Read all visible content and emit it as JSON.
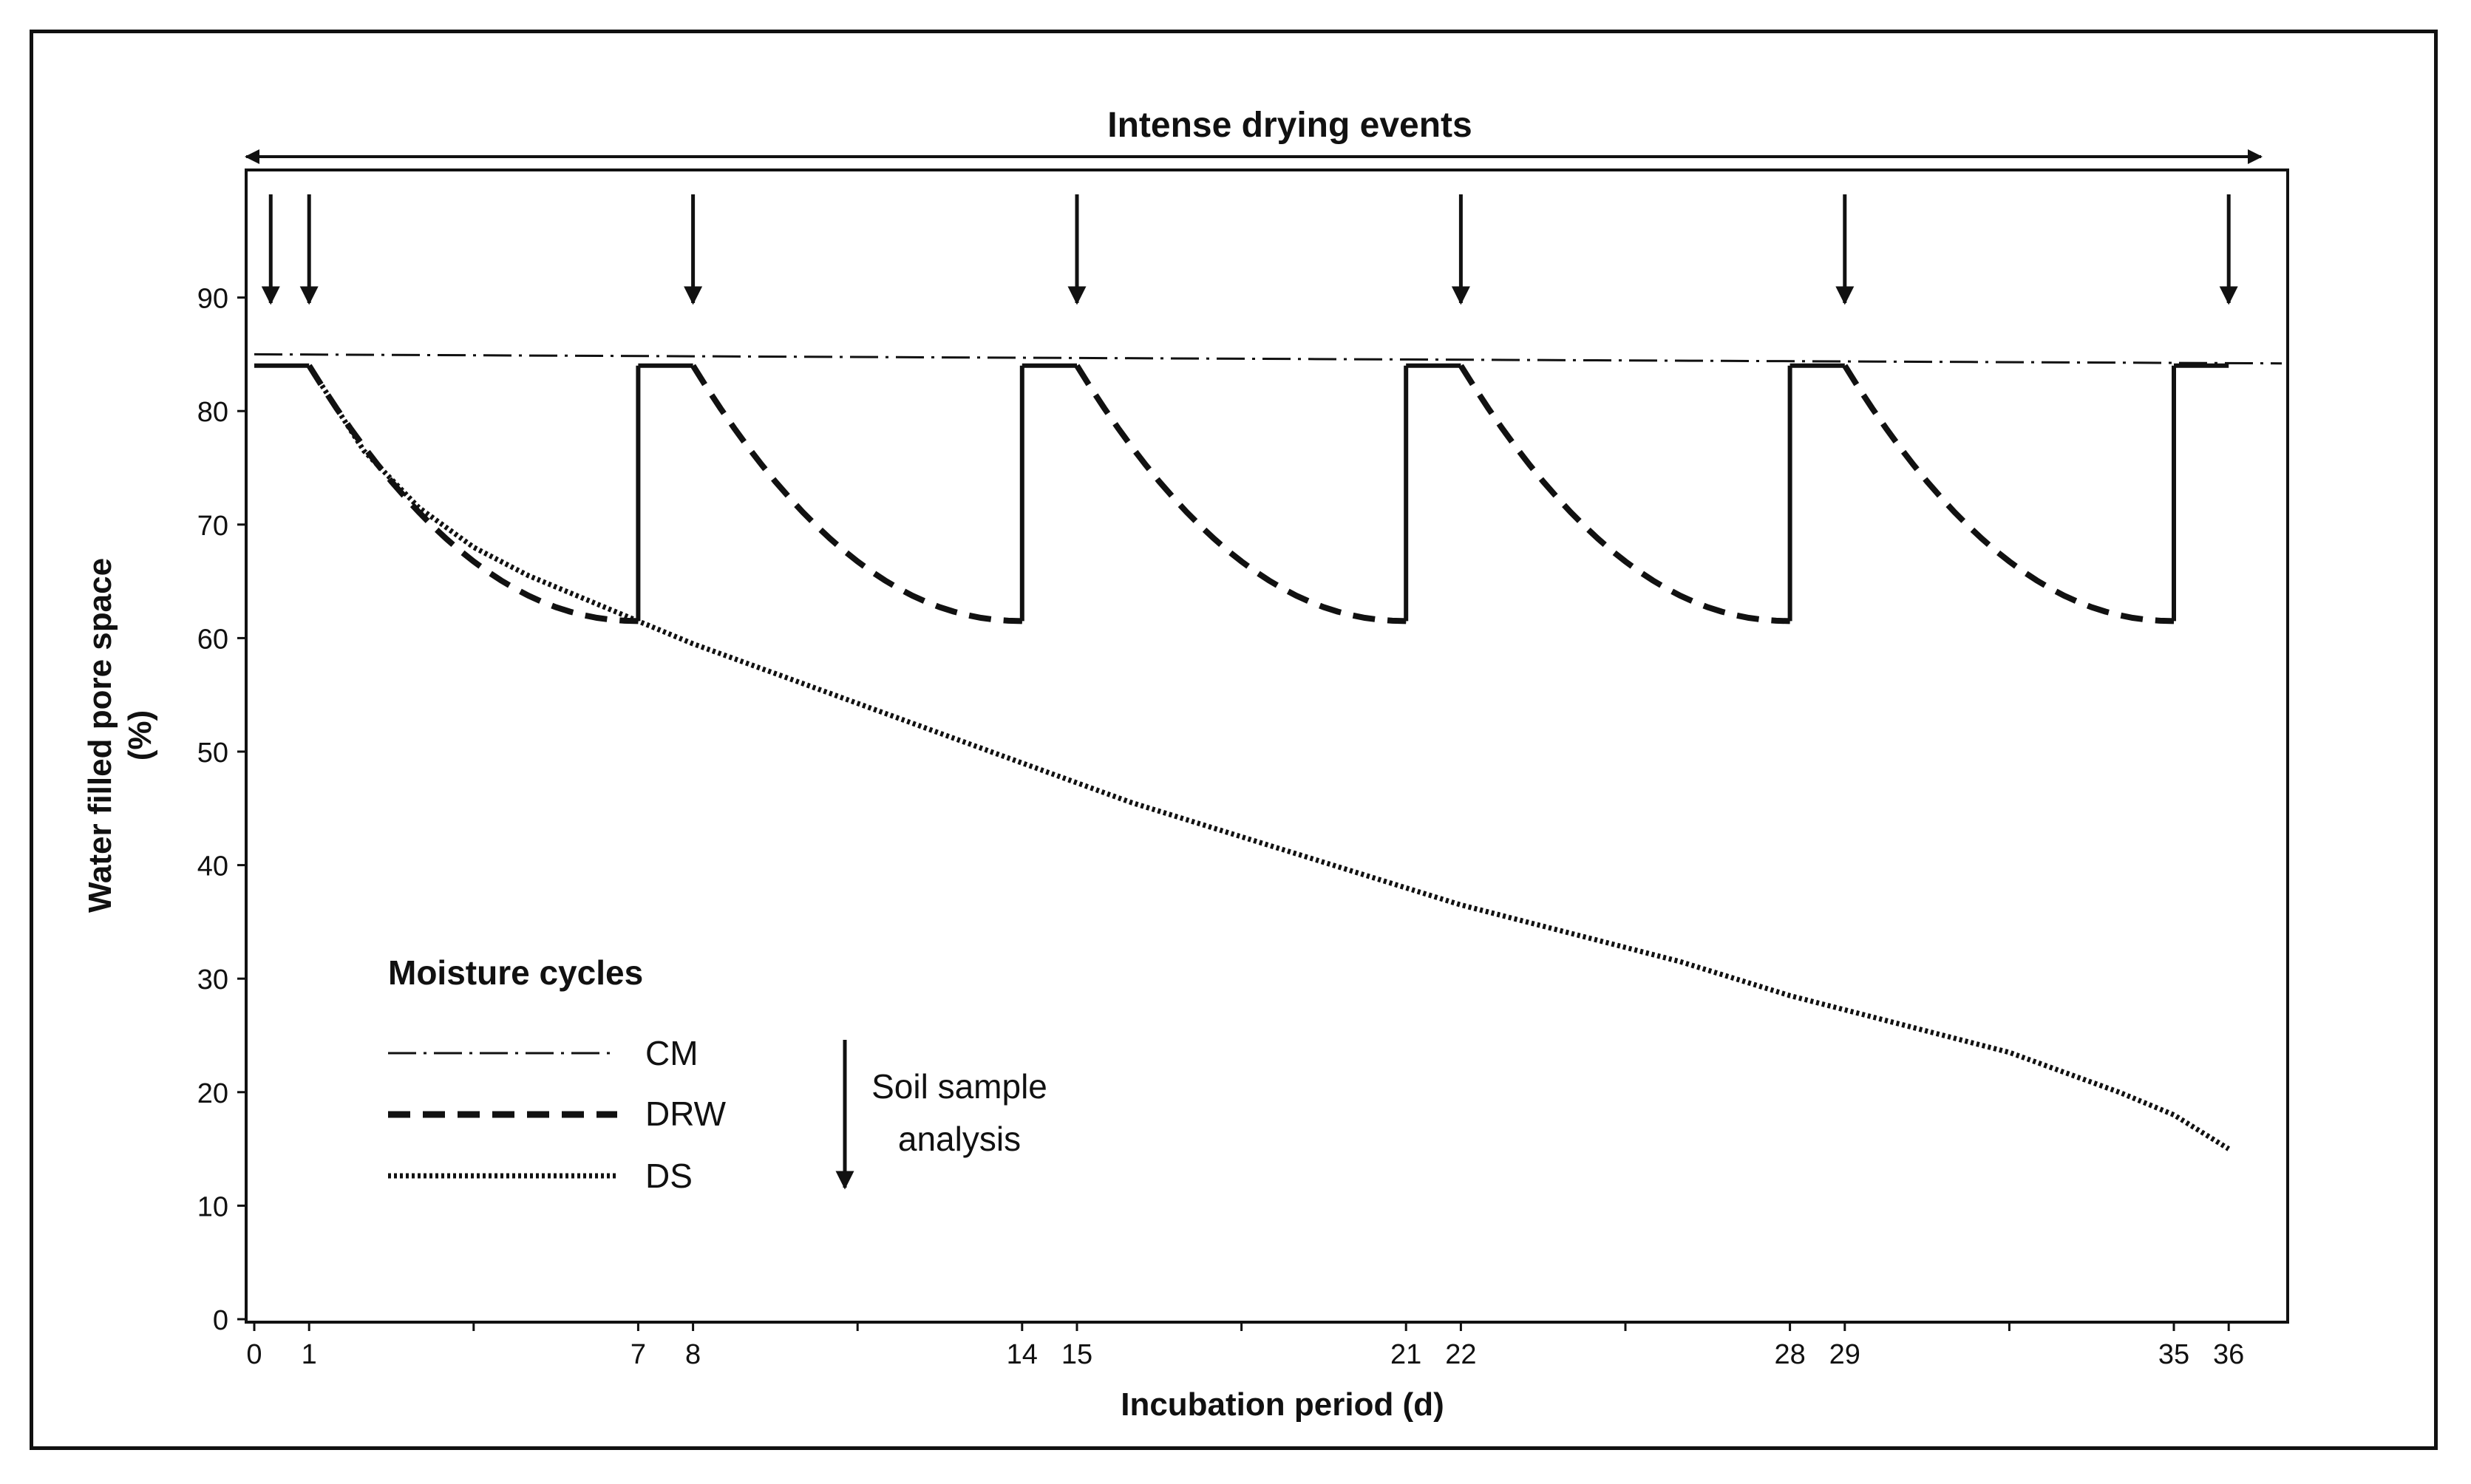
{
  "chart_data": {
    "type": "line",
    "title": "Intense drying events",
    "xlabel": "Incubation period (d)",
    "ylabel_line1": "Water filled pore space",
    "ylabel_line2": "(%)",
    "xlim": [
      0,
      36
    ],
    "ylim": [
      0,
      100
    ],
    "x_ticks": [
      0,
      1,
      7,
      8,
      14,
      15,
      21,
      22,
      28,
      29,
      35,
      36
    ],
    "x_tick_labels": [
      "0",
      "1",
      "7",
      "8",
      "14",
      "15",
      "21",
      "22",
      "28",
      "29",
      "35",
      "36"
    ],
    "y_ticks": [
      0,
      10,
      20,
      30,
      40,
      50,
      60,
      70,
      80,
      90
    ],
    "y_tick_labels": [
      "0",
      "10",
      "20",
      "30",
      "40",
      "50",
      "60",
      "70",
      "80",
      "90"
    ],
    "sampling_days": [
      0,
      1,
      8,
      15,
      22,
      29,
      36
    ],
    "legend": {
      "title": "Moisture cycles",
      "entries": [
        "CM",
        "DRW",
        "DS"
      ],
      "arrow_label_line1": "Soil sample",
      "arrow_label_line2": "analysis"
    },
    "series": [
      {
        "name": "CM",
        "style": "dash-dot",
        "points": [
          [
            0,
            85
          ],
          [
            36,
            84.2
          ]
        ]
      },
      {
        "name": "DRW",
        "style": "dashed-drying / solid-rewetting",
        "wet_level": 84,
        "dry_level": 61.5,
        "drying_periods": [
          [
            1,
            7
          ],
          [
            8,
            14
          ],
          [
            15,
            21
          ],
          [
            22,
            28
          ],
          [
            29,
            35
          ]
        ],
        "rewetting_days": [
          7,
          14,
          21,
          28,
          35
        ]
      },
      {
        "name": "DS",
        "style": "dotted",
        "points": [
          [
            1,
            84
          ],
          [
            2,
            76.5
          ],
          [
            3,
            71.5
          ],
          [
            4,
            68
          ],
          [
            5,
            65.5
          ],
          [
            6,
            63.5
          ],
          [
            7,
            61.5
          ],
          [
            8,
            59.5
          ],
          [
            10,
            56
          ],
          [
            12,
            52.5
          ],
          [
            14,
            49
          ],
          [
            16,
            45.5
          ],
          [
            18,
            42.5
          ],
          [
            20,
            39.5
          ],
          [
            22,
            36.5
          ],
          [
            24,
            34
          ],
          [
            26,
            31.5
          ],
          [
            28,
            28.5
          ],
          [
            30,
            26
          ],
          [
            32,
            23.5
          ],
          [
            34,
            20
          ],
          [
            35,
            18
          ],
          [
            36,
            15
          ]
        ]
      }
    ]
  }
}
